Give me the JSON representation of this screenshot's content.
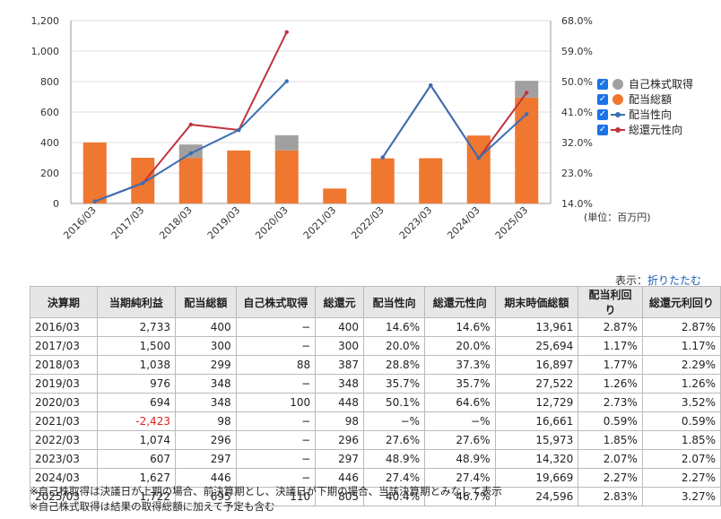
{
  "chart_data": {
    "type": "bar",
    "categories": [
      "2016/03",
      "2017/03",
      "2018/03",
      "2019/03",
      "2020/03",
      "2021/03",
      "2022/03",
      "2023/03",
      "2024/03",
      "2025/03"
    ],
    "y_left_ticks": [
      "0",
      "200",
      "400",
      "600",
      "800",
      "1,000",
      "1,200"
    ],
    "y_left_range": [
      0,
      1200
    ],
    "y_right_ticks": [
      "14.0%",
      "23.0%",
      "32.0%",
      "41.0%",
      "50.0%",
      "59.0%",
      "68.0%"
    ],
    "y_right_range": [
      14.0,
      68.0
    ],
    "unit_label": "(単位：百万円)",
    "series": [
      {
        "name": "配当総額",
        "kind": "bar",
        "axis": "left",
        "color": "#f07730",
        "values": [
          400,
          300,
          299,
          348,
          348,
          98,
          296,
          297,
          446,
          695
        ]
      },
      {
        "name": "自己株式取得",
        "kind": "bar",
        "axis": "left",
        "color": "#a0a0a0",
        "values": [
          0,
          0,
          88,
          0,
          100,
          0,
          0,
          0,
          0,
          110
        ]
      },
      {
        "name": "配当性向",
        "kind": "line",
        "axis": "right",
        "color": "#3a6fb5",
        "values": [
          14.6,
          20.0,
          28.8,
          35.7,
          50.1,
          null,
          27.6,
          48.9,
          27.4,
          40.4
        ]
      },
      {
        "name": "総還元性向",
        "kind": "line",
        "axis": "right",
        "color": "#c0343d",
        "values": [
          14.6,
          20.0,
          37.3,
          35.7,
          64.6,
          null,
          27.6,
          48.9,
          27.4,
          46.7
        ]
      }
    ],
    "legend": [
      {
        "label": "自己株式取得",
        "symbol": "dot",
        "color": "#a0a0a0"
      },
      {
        "label": "配当総額",
        "symbol": "dot",
        "color": "#f07730"
      },
      {
        "label": "配当性向",
        "symbol": "line",
        "color": "#3a6fb5"
      },
      {
        "label": "総還元性向",
        "symbol": "line",
        "color": "#c0343d"
      }
    ],
    "legend_placement": "right",
    "grid": "horizontal"
  },
  "toggle": {
    "label": "表示：",
    "link": "折りたたむ"
  },
  "table": {
    "headers": [
      "決算期",
      "当期純利益",
      "配当総額",
      "自己株式取得",
      "総還元",
      "配当性向",
      "総還元性向",
      "期末時価総額",
      "配当利回り",
      "総還元利回り"
    ],
    "rows": [
      [
        "2016/03",
        "2,733",
        "400",
        "−",
        "400",
        "14.6%",
        "14.6%",
        "13,961",
        "2.87%",
        "2.87%"
      ],
      [
        "2017/03",
        "1,500",
        "300",
        "−",
        "300",
        "20.0%",
        "20.0%",
        "25,694",
        "1.17%",
        "1.17%"
      ],
      [
        "2018/03",
        "1,038",
        "299",
        "88",
        "387",
        "28.8%",
        "37.3%",
        "16,897",
        "1.77%",
        "2.29%"
      ],
      [
        "2019/03",
        "976",
        "348",
        "−",
        "348",
        "35.7%",
        "35.7%",
        "27,522",
        "1.26%",
        "1.26%"
      ],
      [
        "2020/03",
        "694",
        "348",
        "100",
        "448",
        "50.1%",
        "64.6%",
        "12,729",
        "2.73%",
        "3.52%"
      ],
      [
        "2021/03",
        "-2,423",
        "98",
        "−",
        "98",
        "−%",
        "−%",
        "16,661",
        "0.59%",
        "0.59%"
      ],
      [
        "2022/03",
        "1,074",
        "296",
        "−",
        "296",
        "27.6%",
        "27.6%",
        "15,973",
        "1.85%",
        "1.85%"
      ],
      [
        "2023/03",
        "607",
        "297",
        "−",
        "297",
        "48.9%",
        "48.9%",
        "14,320",
        "2.07%",
        "2.07%"
      ],
      [
        "2024/03",
        "1,627",
        "446",
        "−",
        "446",
        "27.4%",
        "27.4%",
        "19,669",
        "2.27%",
        "2.27%"
      ],
      [
        "2025/03",
        "1,722",
        "695",
        "110",
        "805",
        "40.4%",
        "46.7%",
        "24,596",
        "2.83%",
        "3.27%"
      ]
    ],
    "negative_color": "#e0201c"
  },
  "notes": [
    "※自己株取得は決議日が上期の場合、前決算期とし、決議日が下期の場合、当該決算期とみなして表示",
    "※自己株式取得は結果の取得総額に加えて予定も含む"
  ]
}
